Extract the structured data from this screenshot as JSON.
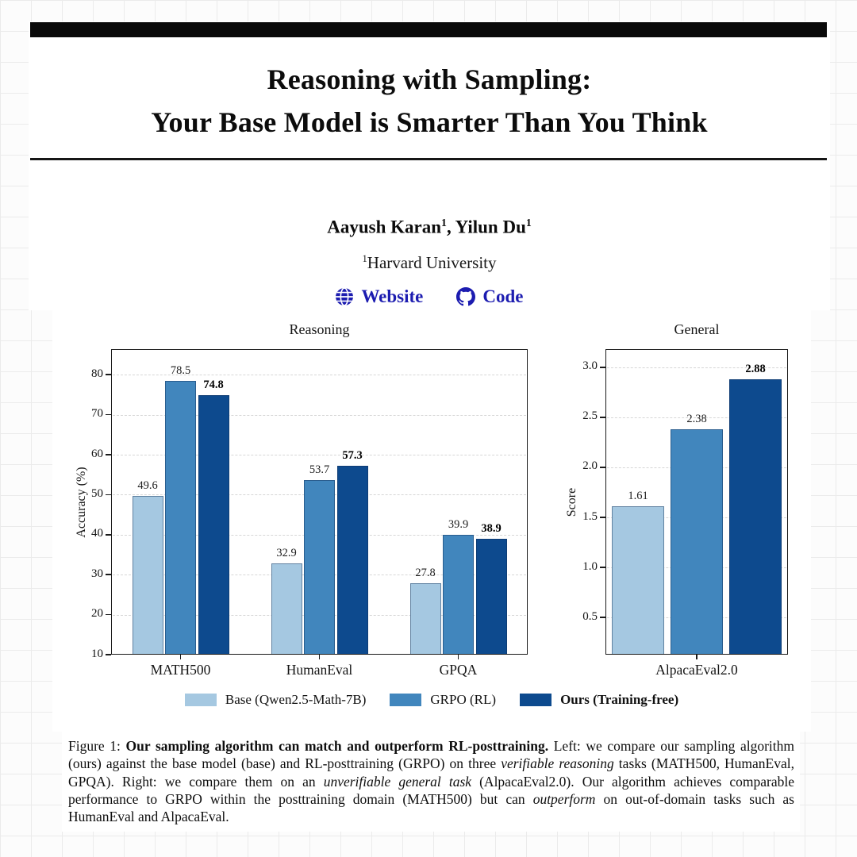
{
  "header": {
    "title_line1": "Reasoning with Sampling:",
    "title_line2": "Your Base Model is Smarter Than You Think",
    "author1": "Aayush Karan",
    "author1_sup": "1",
    "author2": ", Yilun Du",
    "author2_sup": "1",
    "affiliation_sup": "1",
    "affiliation": "Harvard University",
    "links": [
      {
        "label": "Website",
        "icon": "globe-icon"
      },
      {
        "label": "Code",
        "icon": "github-icon"
      }
    ]
  },
  "colors": {
    "base": "#a5c8e1",
    "grpo": "#4186bd",
    "ours": "#0d4a8e",
    "link": "#1c1cb0",
    "top_bar": "#0a0a0a"
  },
  "chart_data": [
    {
      "type": "bar",
      "title": "Reasoning",
      "ylabel": "Accuracy (%)",
      "categories": [
        "MATH500",
        "HumanEval",
        "GPQA"
      ],
      "series": [
        {
          "name": "Base (Qwen2.5-Math-7B)",
          "color": "#a5c8e1",
          "values": [
            49.6,
            32.9,
            27.8
          ]
        },
        {
          "name": "GRPO (RL)",
          "color": "#4186bd",
          "values": [
            78.5,
            53.7,
            39.9
          ]
        },
        {
          "name": "Ours (Training-free)",
          "color": "#0d4a8e",
          "values": [
            74.8,
            57.3,
            38.9
          ],
          "bold_labels": true
        }
      ],
      "ylim": [
        10,
        86.4
      ],
      "yticks": [
        10,
        20,
        30,
        40,
        50,
        60,
        70,
        80
      ],
      "grid": true,
      "value_decimals": 1
    },
    {
      "type": "bar",
      "title": "General",
      "ylabel": "Score",
      "categories": [
        "AlpacaEval2.0"
      ],
      "series": [
        {
          "name": "Base (Qwen2.5-Math-7B)",
          "color": "#a5c8e1",
          "values": [
            1.61
          ]
        },
        {
          "name": "GRPO (RL)",
          "color": "#4186bd",
          "values": [
            2.38
          ]
        },
        {
          "name": "Ours (Training-free)",
          "color": "#0d4a8e",
          "values": [
            2.88
          ],
          "bold_labels": true
        }
      ],
      "ylim": [
        0.13,
        3.18
      ],
      "yticks": [
        0.5,
        1.0,
        1.5,
        2.0,
        2.5,
        3.0
      ],
      "grid": true,
      "value_decimals": 2
    }
  ],
  "legend": {
    "items": [
      {
        "label": "Base (Qwen2.5-Math-7B)",
        "color": "#a5c8e1",
        "bold": false
      },
      {
        "label": "GRPO (RL)",
        "color": "#4186bd",
        "bold": false
      },
      {
        "label": "Ours (Training-free)",
        "color": "#0d4a8e",
        "bold": true
      }
    ]
  },
  "caption": {
    "prefix": "Figure 1: ",
    "bold": "Our sampling algorithm can match and outperform RL-posttraining.",
    "s1": " Left: we compare our sampling algorithm (ours) against the base model (base) and RL-posttraining (GRPO) on three ",
    "i1": "verifiable reasoning",
    "s2": " tasks (MATH500, HumanEval, GPQA). Right: we compare them on an ",
    "i2": "unverifiable general task",
    "s3": " (AlpacaEval2.0). Our algorithm achieves comparable performance to GRPO within the posttraining domain (MATH500) but can ",
    "i3": "outperform",
    "s4": " on out-of-domain tasks such as HumanEval and AlpacaEval."
  }
}
